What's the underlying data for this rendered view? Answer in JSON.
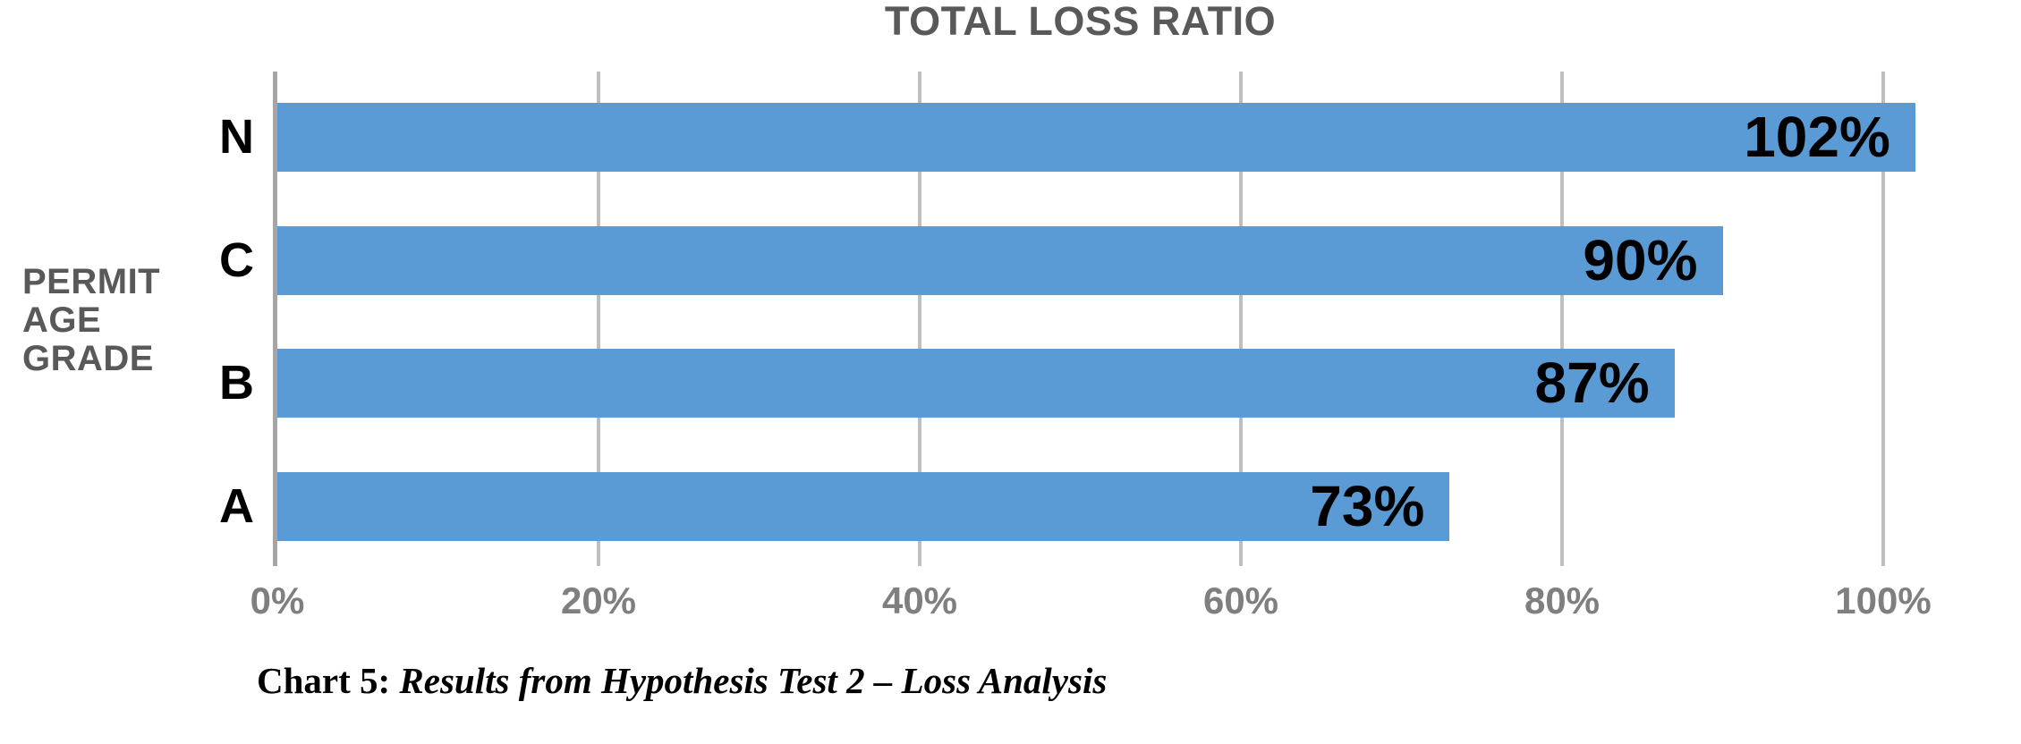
{
  "chart_data": {
    "type": "bar",
    "orientation": "horizontal",
    "title": "TOTAL LOSS RATIO",
    "y_axis_label_lines": [
      "PERMIT",
      "AGE",
      "GRADE"
    ],
    "categories": [
      "N",
      "C",
      "B",
      "A"
    ],
    "values": [
      102,
      90,
      87,
      73
    ],
    "value_labels": [
      "102%",
      "90%",
      "87%",
      "73%"
    ],
    "x_ticks": [
      {
        "value": 0,
        "label": "0%"
      },
      {
        "value": 20,
        "label": "20%"
      },
      {
        "value": 40,
        "label": "40%"
      },
      {
        "value": 60,
        "label": "60%"
      },
      {
        "value": 80,
        "label": "80%"
      },
      {
        "value": 100,
        "label": "100%"
      }
    ],
    "xlim": [
      0,
      104
    ],
    "grid": true,
    "legend": false,
    "colors": {
      "bar": "#5B9BD5",
      "gridline": "#BFBFBF",
      "axis_line": "#A6A6A6",
      "title_text": "#595959",
      "axis_label_text": "#595959",
      "tick_text": "#7F7F7F",
      "value_text": "#000000",
      "category_text": "#000000",
      "background": "#FFFFFF"
    }
  },
  "caption": {
    "prefix": "Chart 5: ",
    "italic_text": "Results from Hypothesis Test 2 – Loss Analysis"
  }
}
